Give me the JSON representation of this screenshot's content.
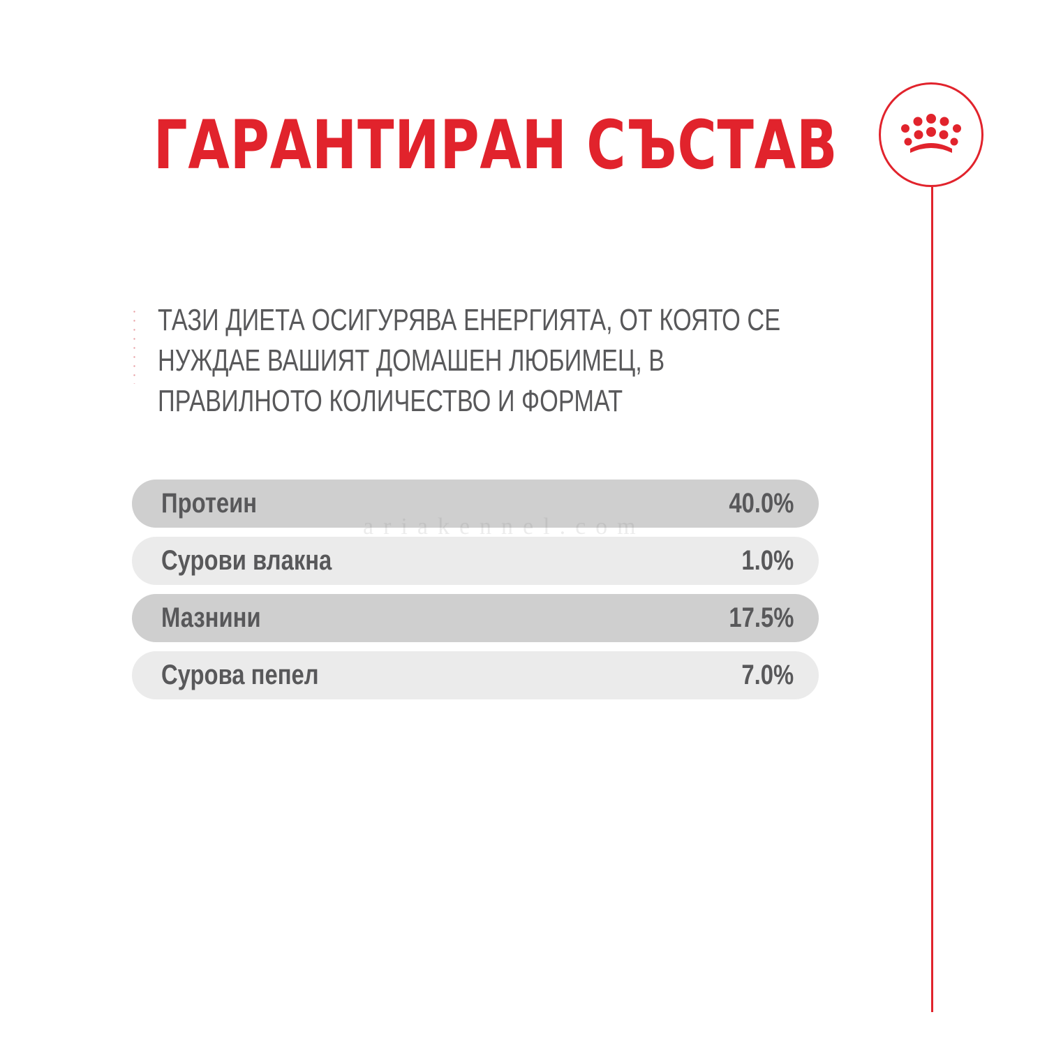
{
  "title": "ГАРАНТИРАН СЪСТАВ",
  "intro": "ТАЗИ ДИЕТА ОСИГУРЯВА ЕНЕРГИЯТА, ОТ КОЯТО СЕ НУЖДАЕ ВАШИЯТ ДОМАШЕН ЛЮБИМЕЦ, В ПРАВИЛНОТО КОЛИЧЕСТВО И ФОРМАТ",
  "composition": [
    {
      "label": "Протеин",
      "value": "40.0%"
    },
    {
      "label": "Сурови влакна",
      "value": "1.0%"
    },
    {
      "label": "Мазнини",
      "value": "17.5%"
    },
    {
      "label": "Сурова пепел",
      "value": "7.0%"
    }
  ],
  "watermark": "ariakennel.com",
  "logo_icon": "crown-icon",
  "colors": {
    "accent": "#e1232c",
    "text": "#58585a",
    "row_dark": "#cfcfcf",
    "row_light": "#ebebeb"
  }
}
